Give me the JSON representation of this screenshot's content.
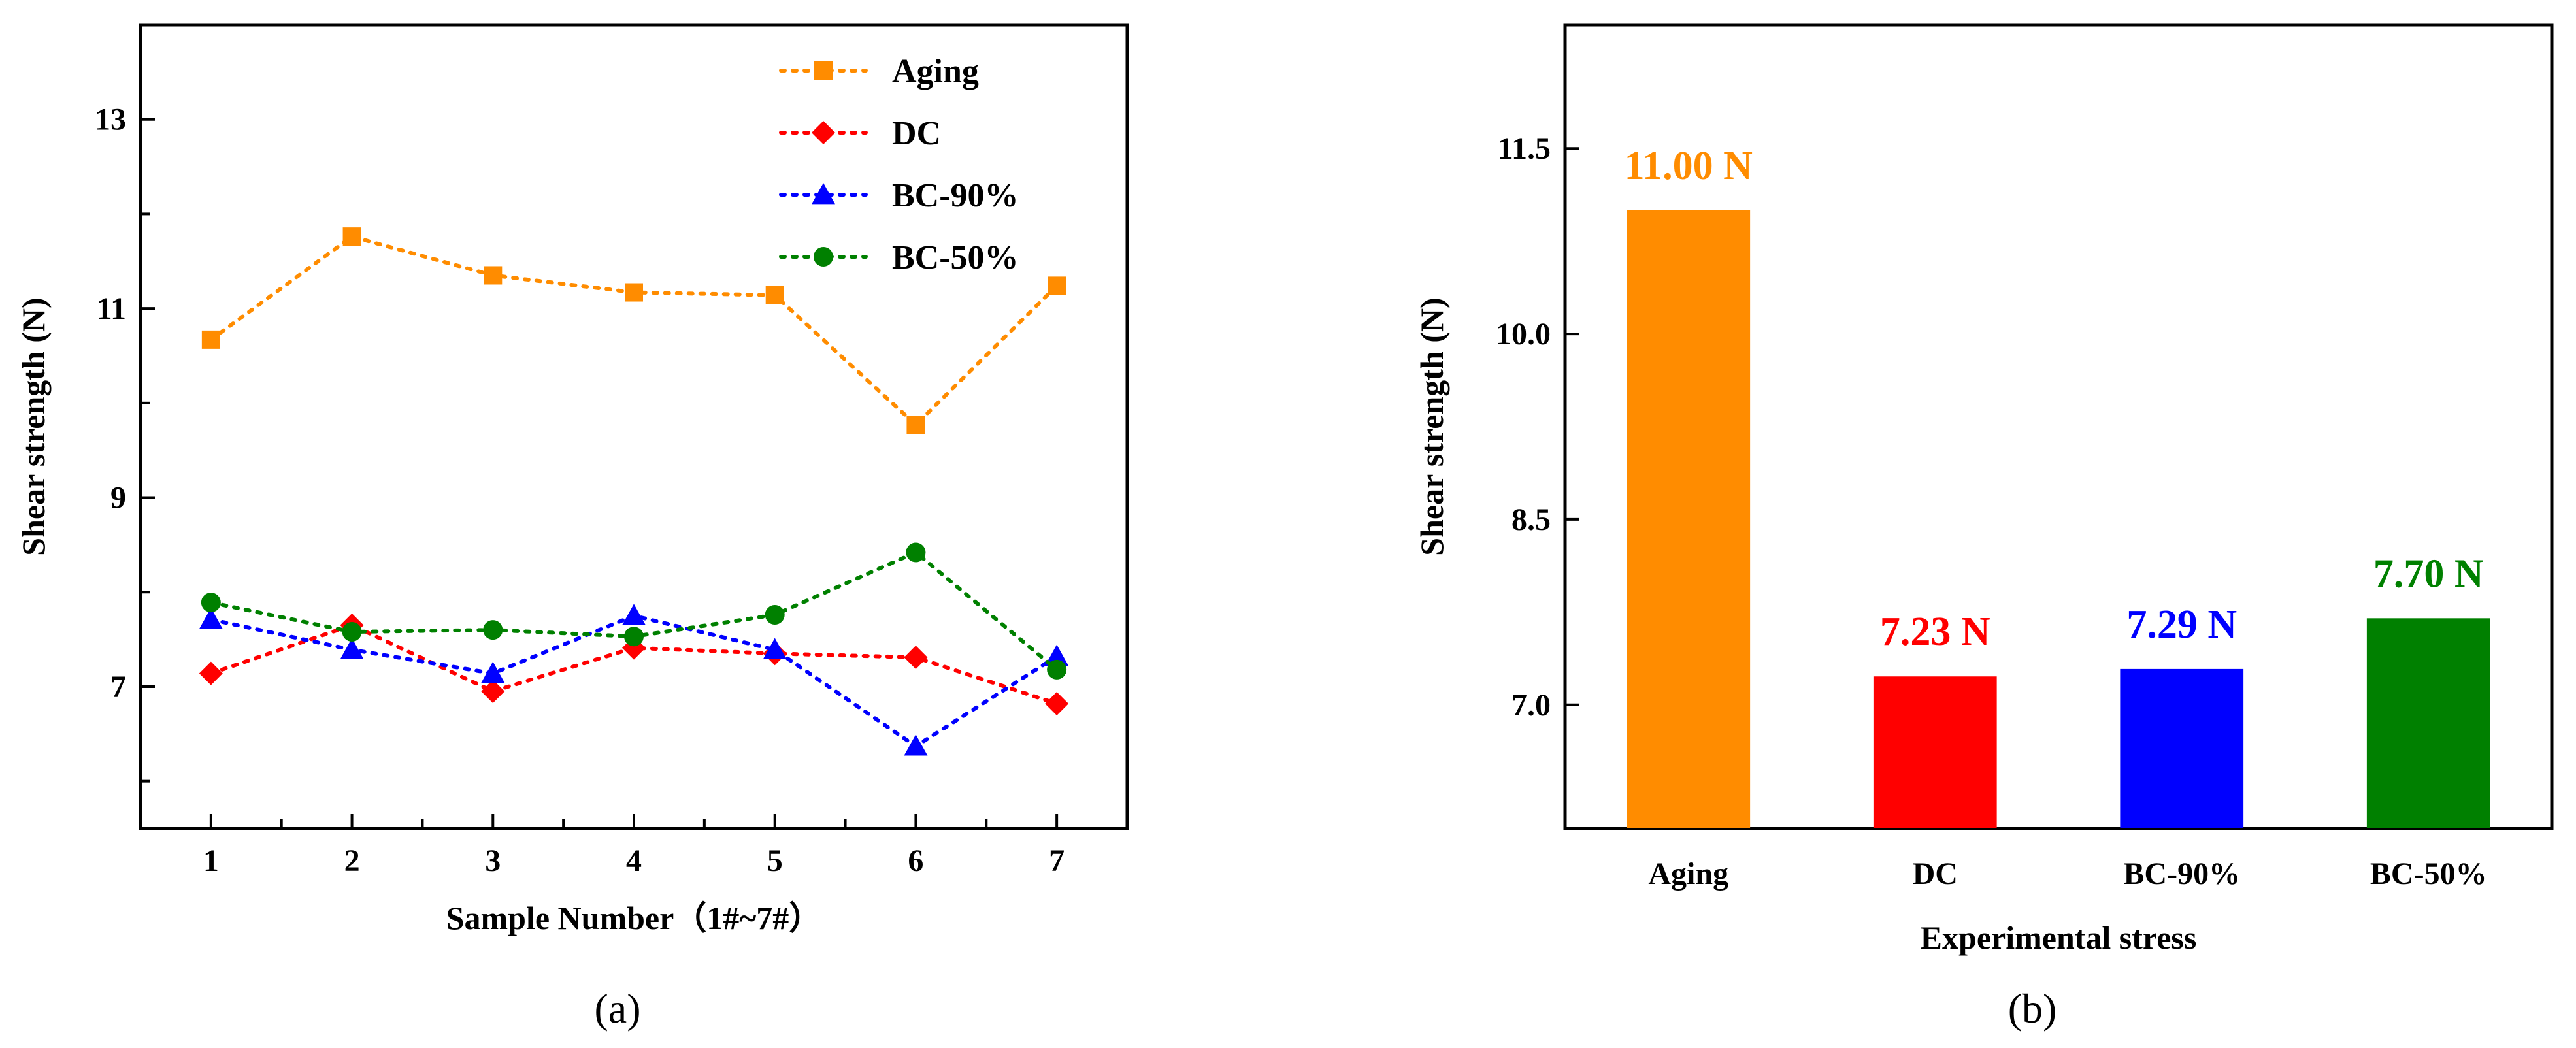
{
  "chart_data": [
    {
      "type": "line",
      "panel": "a",
      "xlabel": "Sample Number（1#~7#）",
      "ylabel": "Shear strength (N)",
      "x": [
        1,
        2,
        3,
        4,
        5,
        6,
        7
      ],
      "xlim": [
        0.5,
        7.5
      ],
      "ylim": [
        5.5,
        14.0
      ],
      "yticks": [
        7,
        9,
        11,
        13
      ],
      "ytick_labels": [
        "7",
        "9",
        "11",
        "13"
      ],
      "xtick_labels": [
        "1",
        "2",
        "3",
        "4",
        "5",
        "6",
        "7"
      ],
      "legend_position": "top-right",
      "series": [
        {
          "name": "Aging",
          "color": "#ff8c00",
          "marker": "square",
          "values": [
            10.67,
            11.76,
            11.35,
            11.17,
            11.14,
            9.77,
            11.24
          ]
        },
        {
          "name": "DC",
          "color": "#ff0000",
          "marker": "diamond",
          "values": [
            7.14,
            7.65,
            6.95,
            7.41,
            7.35,
            7.31,
            6.82
          ]
        },
        {
          "name": "BC-90%",
          "color": "#0000ff",
          "marker": "triangle",
          "values": [
            7.71,
            7.39,
            7.14,
            7.75,
            7.39,
            6.37,
            7.32
          ]
        },
        {
          "name": "BC-50%",
          "color": "#008000",
          "marker": "circle",
          "values": [
            7.89,
            7.58,
            7.6,
            7.53,
            7.76,
            8.42,
            7.18
          ]
        }
      ]
    },
    {
      "type": "bar",
      "panel": "b",
      "xlabel": "Experimental stress",
      "ylabel": "Shear strength (N)",
      "categories": [
        "Aging",
        "DC",
        "BC-90%",
        "BC-50%"
      ],
      "values": [
        11.0,
        7.23,
        7.29,
        7.7
      ],
      "value_labels": [
        "11.00 N",
        "7.23 N",
        "7.29 N",
        "7.70 N"
      ],
      "colors": [
        "#ff8c00",
        "#ff0000",
        "#0000ff",
        "#008000"
      ],
      "ylim": [
        6.0,
        12.5
      ],
      "yticks": [
        7.0,
        8.5,
        10.0,
        11.5
      ],
      "ytick_labels": [
        "7.0",
        "8.5",
        "10.0",
        "11.5"
      ]
    }
  ],
  "panel_labels": [
    "(a)",
    "(b)"
  ]
}
